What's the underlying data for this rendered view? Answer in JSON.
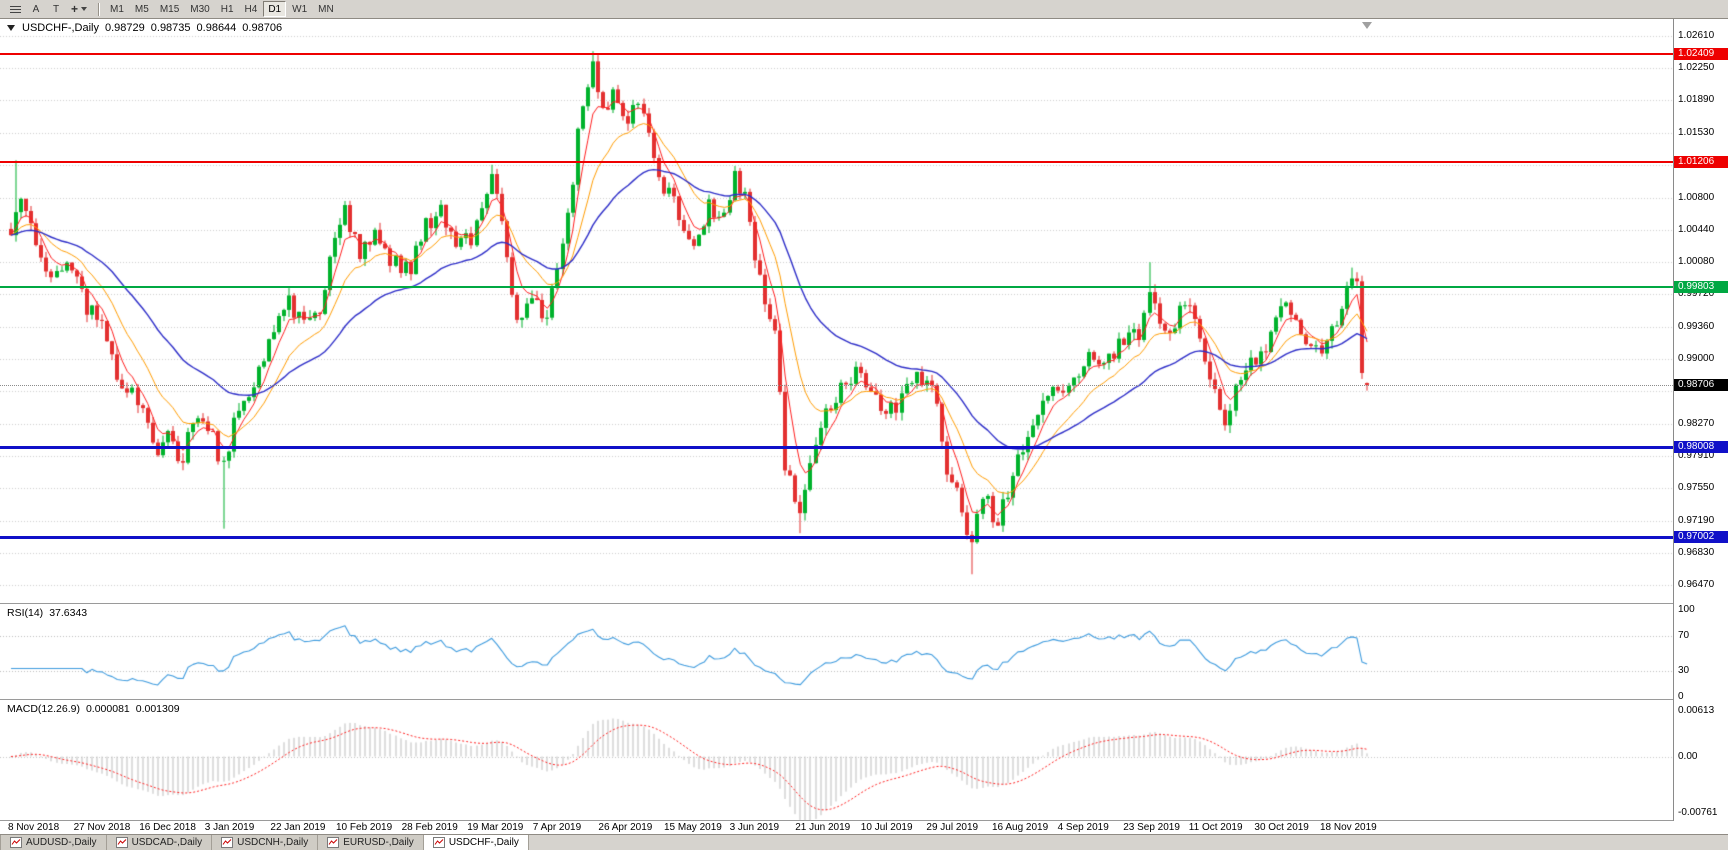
{
  "toolbar": {
    "text_tool_label": "A",
    "template_tool_label": "T",
    "timeframes": [
      {
        "label": "M1"
      },
      {
        "label": "M5"
      },
      {
        "label": "M15"
      },
      {
        "label": "M30"
      },
      {
        "label": "H1"
      },
      {
        "label": "H4"
      },
      {
        "label": "D1",
        "active": true
      },
      {
        "label": "W1"
      },
      {
        "label": "MN"
      }
    ]
  },
  "chart": {
    "header": {
      "symbol": "USDCHF-,Daily",
      "open": "0.98729",
      "high": "0.98735",
      "low": "0.98644",
      "close": "0.98706"
    },
    "scale": {
      "top_price": 1.0261,
      "bottom_price": 0.9647
    },
    "price_axis_labels": [
      {
        "text": "1.02610",
        "price": 1.0261
      },
      {
        "text": "1.02250",
        "price": 1.0225
      },
      {
        "text": "1.01890",
        "price": 1.0189
      },
      {
        "text": "1.01530",
        "price": 1.0153
      },
      {
        "text": "1.00800",
        "price": 1.008
      },
      {
        "text": "1.00440",
        "price": 1.0044
      },
      {
        "text": "1.00080",
        "price": 1.0008
      },
      {
        "text": "0.99720",
        "price": 0.9972
      },
      {
        "text": "0.99360",
        "price": 0.9936
      },
      {
        "text": "0.99000",
        "price": 0.99
      },
      {
        "text": "0.98270",
        "price": 0.9827
      },
      {
        "text": "0.97910",
        "price": 0.9791
      },
      {
        "text": "0.97550",
        "price": 0.9755
      },
      {
        "text": "0.97190",
        "price": 0.9719
      },
      {
        "text": "0.96830",
        "price": 0.9683
      },
      {
        "text": "0.96470",
        "price": 0.9647
      }
    ],
    "grid_prices": [
      1.0261,
      1.0225,
      1.0189,
      1.0153,
      1.0117,
      1.008,
      1.0044,
      1.0008,
      0.9972,
      0.9936,
      0.99,
      0.9864,
      0.9827,
      0.9791,
      0.9755,
      0.9719,
      0.9683,
      0.9647
    ],
    "levels": [
      {
        "label": "1.02409",
        "price": 1.02409,
        "color": "#EE0000",
        "thickness": 2,
        "kind": "resistance"
      },
      {
        "label": "1.01206",
        "price": 1.01206,
        "color": "#EE0000",
        "thickness": 2,
        "kind": "resistance"
      },
      {
        "label": "0.99803",
        "price": 0.99803,
        "color": "#00A843",
        "thickness": 2,
        "kind": "pivot"
      },
      {
        "label": "0.98008",
        "price": 0.98008,
        "color": "#1010C8",
        "thickness": 3,
        "kind": "support"
      },
      {
        "label": "0.97002",
        "price": 0.97002,
        "color": "#1010C8",
        "thickness": 3,
        "kind": "support"
      }
    ],
    "current_price": {
      "label": "0.98706",
      "price": 0.98706,
      "badge_color": "#000000"
    },
    "dates": [
      "8 Nov 2018",
      "27 Nov 2018",
      "16 Dec 2018",
      "3 Jan 2019",
      "22 Jan 2019",
      "10 Feb 2019",
      "28 Feb 2019",
      "19 Mar 2019",
      "7 Apr 2019",
      "26 Apr 2019",
      "15 May 2019",
      "3 Jun 2019",
      "21 Jun 2019",
      "10 Jul 2019",
      "29 Jul 2019",
      "16 Aug 2019",
      "4 Sep 2019",
      "23 Sep 2019",
      "11 Oct 2019",
      "30 Oct 2019",
      "18 Nov 2019"
    ]
  },
  "rsi": {
    "title": "RSI(14)",
    "value": "37.6343",
    "period": 14,
    "levels": [
      {
        "text": "100",
        "value": 100,
        "dotted": false
      },
      {
        "text": "70",
        "value": 70,
        "dotted": true
      },
      {
        "text": "30",
        "value": 30,
        "dotted": true
      },
      {
        "text": "0",
        "value": 0,
        "dotted": false
      }
    ],
    "line_color": "#3E9BDE"
  },
  "macd": {
    "title": "MACD(12.26.9)",
    "value_main": "0.000081",
    "value_signal": "0.001309",
    "fast": 12,
    "slow": 26,
    "signal": 9,
    "axis_labels": [
      {
        "text": "0.00613",
        "value": 0.00613
      },
      {
        "text": "0.00",
        "value": 0
      },
      {
        "text": "-0.00761",
        "value": -0.00761
      }
    ],
    "range_top": 0.00613,
    "range_bottom": -0.00761,
    "histogram_color": "#BDBDBD",
    "signal_color": "#FF2222"
  },
  "tabs": [
    {
      "label": "AUDUSD-,Daily",
      "active": false
    },
    {
      "label": "USDCAD-,Daily",
      "active": false
    },
    {
      "label": "USDCNH-,Daily",
      "active": false
    },
    {
      "label": "EURUSD-,Daily",
      "active": false
    },
    {
      "label": "USDCHF-,Daily",
      "active": true
    }
  ],
  "colors": {
    "candle_up": "#00B22C",
    "candle_down": "#E33030",
    "grid": "#CDCDCD",
    "current_price_line": "#8C8C8C"
  },
  "chart_data": {
    "type": "candlestick",
    "symbol": "USDCHF",
    "timeframe": "Daily",
    "visible_range": [
      "8 Nov 2018",
      "6 Dec 2019"
    ],
    "ylim": [
      0.9647,
      1.0261
    ],
    "candle_count": 269,
    "close_keypoints": [
      [
        0,
        1.0045
      ],
      [
        2,
        1.0075
      ],
      [
        5,
        1.003
      ],
      [
        8,
        0.9985
      ],
      [
        11,
        1.0008
      ],
      [
        15,
        0.9958
      ],
      [
        18,
        0.9938
      ],
      [
        22,
        0.9868
      ],
      [
        26,
        0.9852
      ],
      [
        29,
        0.979
      ],
      [
        31,
        0.9818
      ],
      [
        34,
        0.978
      ],
      [
        36,
        0.9838
      ],
      [
        39,
        0.9826
      ],
      [
        41,
        0.9795
      ],
      [
        42,
        0.978
      ],
      [
        45,
        0.9852
      ],
      [
        48,
        0.987
      ],
      [
        51,
        0.992
      ],
      [
        55,
        0.9962
      ],
      [
        58,
        0.9938
      ],
      [
        61,
        0.995
      ],
      [
        64,
        1.0035
      ],
      [
        66,
        1.0062
      ],
      [
        69,
        1.0022
      ],
      [
        72,
        1.0035
      ],
      [
        76,
        1.0006
      ],
      [
        79,
        1.0
      ],
      [
        82,
        1.0052
      ],
      [
        85,
        1.0062
      ],
      [
        88,
        1.0035
      ],
      [
        91,
        1.0028
      ],
      [
        95,
        1.0105
      ],
      [
        97,
        1.0048
      ],
      [
        100,
        0.9938
      ],
      [
        102,
        0.9958
      ],
      [
        106,
        0.9955
      ],
      [
        109,
        1.0018
      ],
      [
        111,
        1.0105
      ],
      [
        113,
        1.0188
      ],
      [
        115,
        1.0225
      ],
      [
        117,
        1.018
      ],
      [
        119,
        1.0194
      ],
      [
        121,
        1.0165
      ],
      [
        124,
        1.0188
      ],
      [
        126,
        1.0148
      ],
      [
        129,
        1.0092
      ],
      [
        132,
        1.0066
      ],
      [
        135,
        1.0022
      ],
      [
        138,
        1.0074
      ],
      [
        140,
        1.005
      ],
      [
        143,
        1.0104
      ],
      [
        145,
        1.008
      ],
      [
        148,
        0.9986
      ],
      [
        151,
        0.9936
      ],
      [
        153,
        0.9778
      ],
      [
        156,
        0.9726
      ],
      [
        158,
        0.978
      ],
      [
        161,
        0.984
      ],
      [
        164,
        0.9866
      ],
      [
        167,
        0.989
      ],
      [
        170,
        0.9856
      ],
      [
        173,
        0.9836
      ],
      [
        177,
        0.9864
      ],
      [
        180,
        0.988
      ],
      [
        183,
        0.9856
      ],
      [
        185,
        0.9776
      ],
      [
        188,
        0.9736
      ],
      [
        190,
        0.969
      ],
      [
        192,
        0.9746
      ],
      [
        195,
        0.9716
      ],
      [
        198,
        0.977
      ],
      [
        200,
        0.9796
      ],
      [
        203,
        0.984
      ],
      [
        207,
        0.9864
      ],
      [
        210,
        0.9876
      ],
      [
        213,
        0.9904
      ],
      [
        217,
        0.99
      ],
      [
        220,
        0.9924
      ],
      [
        223,
        0.993
      ],
      [
        225,
        0.9974
      ],
      [
        228,
        0.9924
      ],
      [
        231,
        0.995
      ],
      [
        233,
        0.997
      ],
      [
        235,
        0.9914
      ],
      [
        238,
        0.9864
      ],
      [
        240,
        0.9836
      ],
      [
        242,
        0.9864
      ],
      [
        245,
        0.9894
      ],
      [
        248,
        0.9906
      ],
      [
        251,
        0.9968
      ],
      [
        254,
        0.9934
      ],
      [
        257,
        0.9906
      ],
      [
        260,
        0.992
      ],
      [
        263,
        0.9958
      ],
      [
        265,
        0.9994
      ],
      [
        266,
        0.998
      ],
      [
        267,
        0.9876
      ],
      [
        268,
        0.98706
      ]
    ],
    "spikes": [
      {
        "i": 1,
        "high": 1.0122
      },
      {
        "i": 42,
        "low": 0.971
      },
      {
        "i": 95,
        "high": 1.0117
      },
      {
        "i": 115,
        "high": 1.0244
      },
      {
        "i": 156,
        "low": 0.9705
      },
      {
        "i": 190,
        "low": 0.9659
      },
      {
        "i": 225,
        "high": 1.0008
      },
      {
        "i": 265,
        "high": 1.0002
      }
    ],
    "last_candle": {
      "open": 0.98729,
      "high": 0.98735,
      "low": 0.98644,
      "close": 0.98706
    },
    "overlays": [
      {
        "name": "ma-fast",
        "period": 5,
        "color": "#FF1E1E",
        "width": 1
      },
      {
        "name": "ma-mid",
        "period": 13,
        "color": "#FF9C00",
        "width": 1
      },
      {
        "name": "ma-slow",
        "period": 34,
        "color": "#2E2EC8",
        "width": 1.4
      }
    ],
    "horizontal_levels": [
      1.02409,
      1.01206,
      0.99803,
      0.98008,
      0.97002
    ],
    "indicators": [
      {
        "name": "RSI",
        "period": 14,
        "last_value": 37.6343
      },
      {
        "name": "MACD",
        "params": [
          12,
          26,
          9
        ],
        "last_main": 8.1e-05,
        "last_signal": 0.001309
      }
    ]
  }
}
